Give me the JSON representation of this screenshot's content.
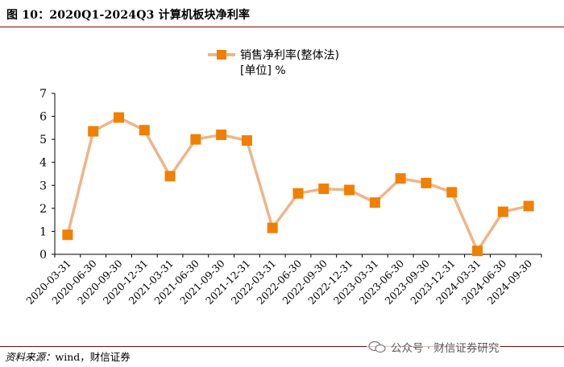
{
  "figure_title": "图 10：2020Q1-2024Q3 计算机板块净利率",
  "source": {
    "label": "资料来源：",
    "text": "wind，财信证券"
  },
  "watermark": "公众号 · 财信证券研究",
  "colors": {
    "series": "#F08000",
    "line": "#EFB48A",
    "axis": "#000000"
  },
  "chart_data": {
    "type": "line",
    "title": "",
    "legend": "销售净利率(整体法)",
    "unit_label": "[单位] %",
    "categories": [
      "2020-03-31",
      "2020-06-30",
      "2020-09-30",
      "2020-12-31",
      "2021-03-31",
      "2021-06-30",
      "2021-09-30",
      "2021-12-31",
      "2022-03-31",
      "2022-06-30",
      "2022-09-30",
      "2022-12-31",
      "2023-03-31",
      "2023-06-30",
      "2023-09-30",
      "2023-12-31",
      "2024-03-31",
      "2024-06-30",
      "2024-09-30"
    ],
    "values": [
      0.85,
      5.35,
      5.95,
      5.4,
      3.4,
      5.0,
      5.2,
      4.95,
      1.15,
      2.65,
      2.85,
      2.8,
      2.25,
      3.3,
      3.1,
      2.7,
      0.15,
      1.85,
      2.1
    ],
    "ylim": [
      0,
      7
    ],
    "yticks": [
      0,
      1,
      2,
      3,
      4,
      5,
      6,
      7
    ],
    "xlabel": "",
    "ylabel": "",
    "grid": false
  }
}
